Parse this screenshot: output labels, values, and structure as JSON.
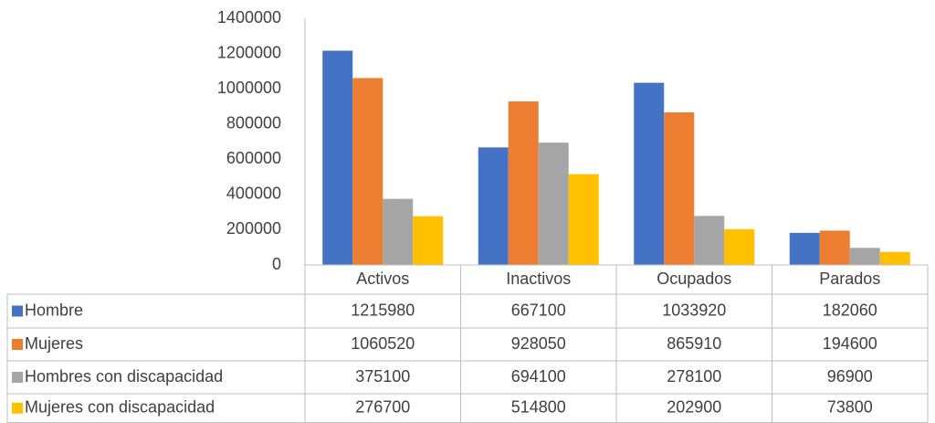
{
  "chart_data": {
    "type": "bar",
    "categories": [
      "Activos",
      "Inactivos",
      "Ocupados",
      "Parados"
    ],
    "series": [
      {
        "name": "Hombre",
        "color": "#4472c4",
        "values": [
          1215980,
          667100,
          1033920,
          182060
        ]
      },
      {
        "name": "Mujeres",
        "color": "#ed7d31",
        "values": [
          1060520,
          928050,
          865910,
          194600
        ]
      },
      {
        "name": "Hombres con discapacidad",
        "color": "#a5a5a5",
        "values": [
          375100,
          694100,
          278100,
          96900
        ]
      },
      {
        "name": "Mujeres con discapacidad",
        "color": "#ffc000",
        "values": [
          276700,
          514800,
          202900,
          73800
        ]
      }
    ],
    "ylim": [
      0,
      1400000
    ],
    "yticks": [
      0,
      200000,
      400000,
      600000,
      800000,
      1000000,
      1200000,
      1400000
    ],
    "grid": false,
    "data_table": true
  }
}
